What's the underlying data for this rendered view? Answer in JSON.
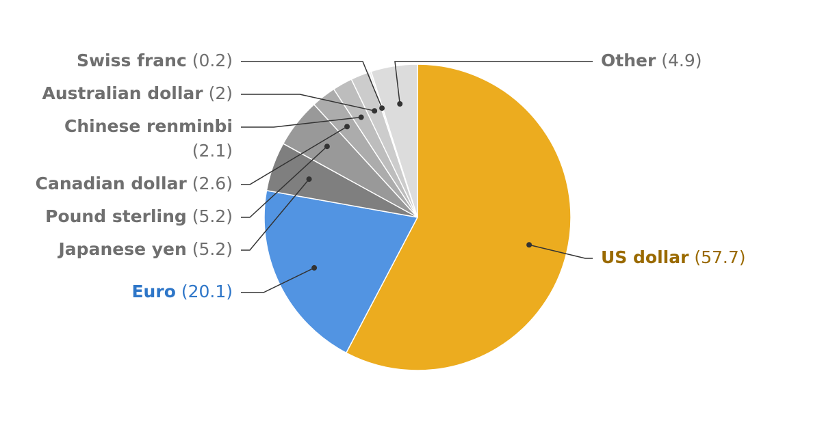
{
  "chart_data": {
    "type": "pie",
    "categories": [
      "US dollar",
      "Euro",
      "Japanese yen",
      "Pound sterling",
      "Canadian dollar",
      "Chinese renminbi",
      "Australian dollar",
      "Swiss franc",
      "Other"
    ],
    "values": [
      57.7,
      20.1,
      5.2,
      5.2,
      2.6,
      2.1,
      2,
      0.2,
      4.9
    ],
    "value_labels": [
      "(57.7)",
      "(20.1)",
      "(5.2)",
      "(5.2)",
      "(2.6)",
      "(2.1)",
      "(2)",
      "(0.2)",
      "(4.9)"
    ],
    "colors": [
      "#ecac1f",
      "#5294e2",
      "#7f7f7f",
      "#999999",
      "#acacac",
      "#bdbdbd",
      "#cccccc",
      "#ebebeb",
      "#dcdcdc"
    ],
    "label_colors": [
      "#9a6a00",
      "#2e76c8",
      "#6f6f6f",
      "#6f6f6f",
      "#6f6f6f",
      "#6f6f6f",
      "#6f6f6f",
      "#6f6f6f",
      "#6f6f6f"
    ]
  }
}
